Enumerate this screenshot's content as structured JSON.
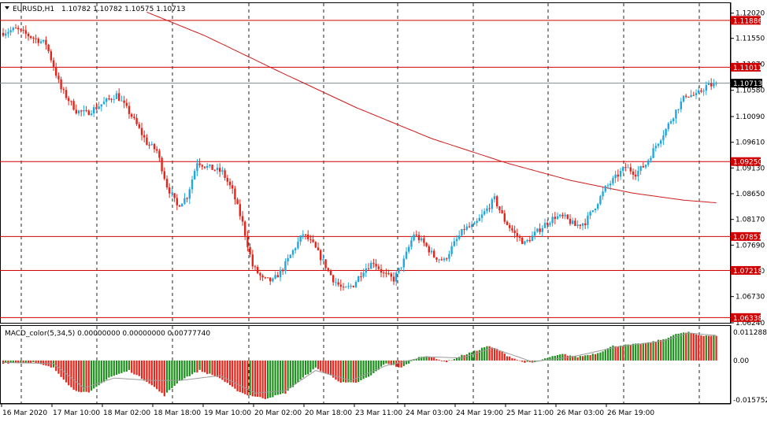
{
  "header": {
    "symbol_tf": "EURUSD,H1",
    "ohlc": "1.10782 1.10782 1.10575 1.10713"
  },
  "indicator": {
    "label": "MACD_color(5,34,5) 0.00000000 0.00000000 0.00777740",
    "ticks": [
      "0.0112880",
      "0.00",
      "-0.0157520"
    ]
  },
  "price_axis": {
    "ticks": [
      "1.12020",
      "1.11550",
      "1.11070",
      "1.10580",
      "1.10090",
      "1.09610",
      "1.09130",
      "1.08650",
      "1.08170",
      "1.07690",
      "1.07210",
      "1.06730",
      "1.06240"
    ]
  },
  "levels": [
    {
      "label": "1.11886",
      "value": 1.11886
    },
    {
      "label": "1.11011",
      "value": 1.11011
    },
    {
      "label": "1.09250",
      "value": 1.0925
    },
    {
      "label": "1.07851",
      "value": 1.07851
    },
    {
      "label": "1.07218",
      "value": 1.07218
    },
    {
      "label": "1.06338",
      "value": 1.06338
    }
  ],
  "current_price": {
    "label": "1.10713",
    "value": 1.10713
  },
  "time_axis": {
    "labels": [
      "16 Mar 2020",
      "17 Mar 10:00",
      "18 Mar 02:00",
      "18 Mar 18:00",
      "19 Mar 10:00",
      "20 Mar 02:00",
      "20 Mar 18:00",
      "23 Mar 11:00",
      "24 Mar 03:00",
      "24 Mar 19:00",
      "25 Mar 11:00",
      "26 Mar 03:00",
      "26 Mar 19:00"
    ]
  },
  "colors": {
    "bull": "#1fa8e0",
    "bear": "#e8241a",
    "level": "#d00000",
    "ma": "#d11a1a",
    "hist_up": "#1a8f1a",
    "hist_down": "#e8241a",
    "signal": "#9a9a9a"
  },
  "chart_data": {
    "type": "candlestick",
    "price_path": [
      [
        0,
        1.1165
      ],
      [
        6,
        1.1172
      ],
      [
        12,
        1.1158
      ],
      [
        18,
        1.1145
      ],
      [
        24,
        1.106
      ],
      [
        30,
        1.102
      ],
      [
        34,
        1.1015
      ],
      [
        40,
        1.1032
      ],
      [
        46,
        1.105
      ],
      [
        52,
        1.101
      ],
      [
        58,
        1.096
      ],
      [
        62,
        1.0945
      ],
      [
        66,
        1.088
      ],
      [
        70,
        1.0842
      ],
      [
        74,
        1.086
      ],
      [
        78,
        1.0925
      ],
      [
        82,
        1.0915
      ],
      [
        88,
        1.0905
      ],
      [
        92,
        1.087
      ],
      [
        96,
        1.081
      ],
      [
        100,
        1.073
      ],
      [
        104,
        1.0705
      ],
      [
        108,
        1.0702
      ],
      [
        112,
        1.0725
      ],
      [
        116,
        1.0758
      ],
      [
        120,
        1.079
      ],
      [
        124,
        1.077
      ],
      [
        128,
        1.0738
      ],
      [
        132,
        1.0705
      ],
      [
        136,
        1.0685
      ],
      [
        140,
        1.0695
      ],
      [
        144,
        1.0723
      ],
      [
        148,
        1.0738
      ],
      [
        152,
        1.0715
      ],
      [
        156,
        1.0705
      ],
      [
        160,
        1.074
      ],
      [
        164,
        1.079
      ],
      [
        168,
        1.0772
      ],
      [
        172,
        1.0748
      ],
      [
        176,
        1.074
      ],
      [
        180,
        1.0772
      ],
      [
        184,
        1.08
      ],
      [
        188,
        1.0805
      ],
      [
        192,
        1.083
      ],
      [
        196,
        1.0855
      ],
      [
        200,
        1.0815
      ],
      [
        204,
        1.079
      ],
      [
        208,
        1.0772
      ],
      [
        212,
        1.079
      ],
      [
        216,
        1.0808
      ],
      [
        220,
        1.0822
      ],
      [
        224,
        1.082
      ],
      [
        228,
        1.0805
      ],
      [
        232,
        1.0812
      ],
      [
        236,
        1.0842
      ],
      [
        240,
        1.0875
      ],
      [
        244,
        1.0895
      ],
      [
        248,
        1.0915
      ],
      [
        252,
        1.0903
      ],
      [
        256,
        1.092
      ],
      [
        260,
        1.0955
      ],
      [
        264,
        1.0985
      ],
      [
        268,
        1.102
      ],
      [
        272,
        1.105
      ],
      [
        276,
        1.1048
      ],
      [
        280,
        1.1066
      ],
      [
        283,
        1.1068
      ]
    ],
    "ma_path": [
      [
        57,
        1.1204
      ],
      [
        80,
        1.116
      ],
      [
        110,
        1.1092
      ],
      [
        140,
        1.1026
      ],
      [
        170,
        1.0968
      ],
      [
        200,
        1.0922
      ],
      [
        225,
        1.089
      ],
      [
        250,
        1.0866
      ],
      [
        270,
        1.0853
      ],
      [
        283,
        1.0848
      ]
    ],
    "macd_path": [
      [
        0,
        -0.001
      ],
      [
        12,
        -0.0008
      ],
      [
        20,
        -0.003
      ],
      [
        28,
        -0.0118
      ],
      [
        34,
        -0.013
      ],
      [
        42,
        -0.0068
      ],
      [
        50,
        -0.004
      ],
      [
        58,
        -0.009
      ],
      [
        64,
        -0.014
      ],
      [
        70,
        -0.008
      ],
      [
        78,
        -0.004
      ],
      [
        86,
        -0.007
      ],
      [
        92,
        -0.0115
      ],
      [
        96,
        -0.0135
      ],
      [
        104,
        -0.0152
      ],
      [
        112,
        -0.013
      ],
      [
        120,
        -0.006
      ],
      [
        124,
        -0.003
      ],
      [
        130,
        -0.006
      ],
      [
        134,
        -0.0088
      ],
      [
        140,
        -0.009
      ],
      [
        146,
        -0.006
      ],
      [
        152,
        -0.001
      ],
      [
        158,
        -0.003
      ],
      [
        164,
        0.001
      ],
      [
        168,
        0.002
      ],
      [
        172,
        0.0005
      ],
      [
        176,
        -0.0005
      ],
      [
        182,
        0.002
      ],
      [
        188,
        0.004
      ],
      [
        192,
        0.0058
      ],
      [
        196,
        0.0045
      ],
      [
        200,
        0.002
      ],
      [
        206,
        -0.0005
      ],
      [
        210,
        -0.001
      ],
      [
        216,
        0.001
      ],
      [
        222,
        0.0025
      ],
      [
        228,
        0.0015
      ],
      [
        236,
        0.003
      ],
      [
        242,
        0.0058
      ],
      [
        248,
        0.0062
      ],
      [
        256,
        0.007
      ],
      [
        262,
        0.0085
      ],
      [
        268,
        0.0108
      ],
      [
        272,
        0.0112
      ],
      [
        276,
        0.0102
      ],
      [
        283,
        0.0098
      ]
    ],
    "signal_path": [
      [
        0,
        -0.0008
      ],
      [
        20,
        -0.0012
      ],
      [
        32,
        -0.011
      ],
      [
        44,
        -0.007
      ],
      [
        60,
        -0.008
      ],
      [
        70,
        -0.008
      ],
      [
        86,
        -0.006
      ],
      [
        100,
        -0.013
      ],
      [
        112,
        -0.012
      ],
      [
        124,
        -0.004
      ],
      [
        138,
        -0.008
      ],
      [
        152,
        -0.002
      ],
      [
        168,
        0.0015
      ],
      [
        182,
        0.001
      ],
      [
        194,
        0.005
      ],
      [
        210,
        -0.0005
      ],
      [
        226,
        0.0015
      ],
      [
        244,
        0.0055
      ],
      [
        262,
        0.0078
      ],
      [
        272,
        0.011
      ],
      [
        283,
        0.01
      ]
    ],
    "price_range": [
      1.0624,
      1.1206
    ],
    "macd_range": [
      -0.015752,
      0.011288
    ]
  }
}
